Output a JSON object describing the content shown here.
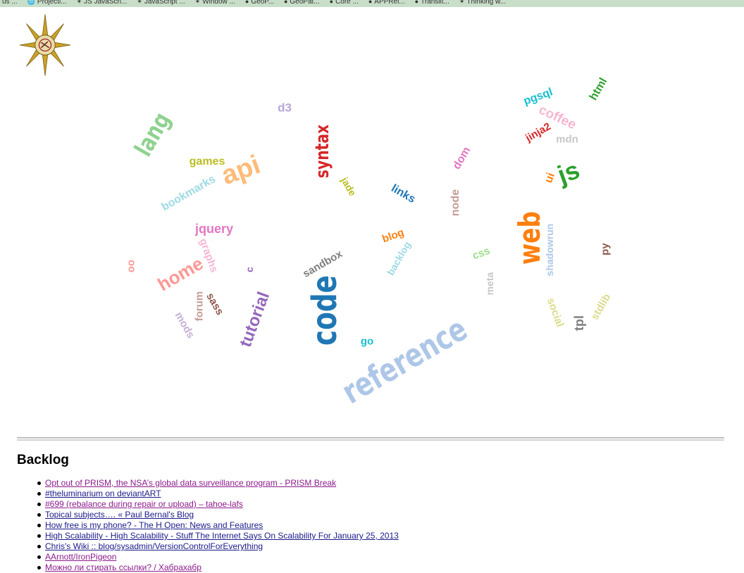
{
  "bookmarks_bar": {
    "items": [
      {
        "icon": "",
        "label": "us ..."
      },
      {
        "icon": "🌐",
        "label": "Projecti..."
      },
      {
        "icon": "✶",
        "label": "JS JavaScri..."
      },
      {
        "icon": "✶",
        "label": "JavaScript ..."
      },
      {
        "icon": "✶",
        "label": "Window ..."
      },
      {
        "icon": "●",
        "label": "GeoP..."
      },
      {
        "icon": "●",
        "label": "GeoPat..."
      },
      {
        "icon": "●",
        "label": "Core ..."
      },
      {
        "icon": "●",
        "label": "APPRei..."
      },
      {
        "icon": "●",
        "label": "Translit..."
      },
      {
        "icon": "✶",
        "label": "Thinking w..."
      }
    ]
  },
  "logo": {
    "alt": "chaos-star-logo"
  },
  "tag_cloud": {
    "tags": [
      {
        "text": "lang",
        "color": "#8fd28f",
        "size": 34,
        "angle": -60,
        "cond": true
      },
      {
        "text": "d3",
        "color": "#b7a6d6",
        "size": 17,
        "angle": 0
      },
      {
        "text": "syntax",
        "color": "#d62728",
        "size": 26,
        "angle": -90,
        "cond": true
      },
      {
        "text": "pgsql",
        "color": "#17becf",
        "size": 16,
        "angle": -20
      },
      {
        "text": "html",
        "color": "#2ca02c",
        "size": 16,
        "angle": -60
      },
      {
        "text": "coffee",
        "color": "#f7b6d2",
        "size": 19,
        "angle": 25
      },
      {
        "text": "jinja2",
        "color": "#d62728",
        "size": 15,
        "angle": -30
      },
      {
        "text": "mdn",
        "color": "#c7c7c7",
        "size": 15,
        "angle": 0
      },
      {
        "text": "js",
        "color": "#2ca02c",
        "size": 36,
        "angle": -20
      },
      {
        "text": "games",
        "color": "#bcbd22",
        "size": 16,
        "angle": 0
      },
      {
        "text": "api",
        "color": "#ffbb78",
        "size": 38,
        "angle": -20
      },
      {
        "text": "bookmarks",
        "color": "#9edae5",
        "size": 16,
        "angle": -30
      },
      {
        "text": "jade",
        "color": "#bcbd22",
        "size": 14,
        "angle": 60
      },
      {
        "text": "links",
        "color": "#1f77b4",
        "size": 16,
        "angle": 30
      },
      {
        "text": "node",
        "color": "#c49c94",
        "size": 16,
        "angle": -90
      },
      {
        "text": "dom",
        "color": "#e377c2",
        "size": 16,
        "angle": -60
      },
      {
        "text": "ui",
        "color": "#ff7f0e",
        "size": 16,
        "angle": -70
      },
      {
        "text": "jquery",
        "color": "#e377c2",
        "size": 18,
        "angle": 0
      },
      {
        "text": "graphs",
        "color": "#f7b6d2",
        "size": 15,
        "angle": 70
      },
      {
        "text": "web",
        "color": "#ff7f0e",
        "size": 42,
        "angle": -90,
        "cond": true
      },
      {
        "text": "shadowrun",
        "color": "#aec7e8",
        "size": 14,
        "angle": -90
      },
      {
        "text": "blog",
        "color": "#ff7f0e",
        "size": 15,
        "angle": -20
      },
      {
        "text": "backlog",
        "color": "#9edae5",
        "size": 14,
        "angle": -60
      },
      {
        "text": "css",
        "color": "#98df8a",
        "size": 15,
        "angle": -20
      },
      {
        "text": "py",
        "color": "#8c564b",
        "size": 15,
        "angle": -90
      },
      {
        "text": "oo",
        "color": "#ff9896",
        "size": 15,
        "angle": 90
      },
      {
        "text": "home",
        "color": "#ff9896",
        "size": 26,
        "angle": -30
      },
      {
        "text": "c",
        "color": "#9467bd",
        "size": 14,
        "angle": -90
      },
      {
        "text": "sandbox",
        "color": "#7f7f7f",
        "size": 15,
        "angle": -30
      },
      {
        "text": "meta",
        "color": "#c7c7c7",
        "size": 14,
        "angle": -90
      },
      {
        "text": "forum",
        "color": "#c49c94",
        "size": 15,
        "angle": -90
      },
      {
        "text": "sass",
        "color": "#8c564b",
        "size": 15,
        "angle": 60
      },
      {
        "text": "tutorial",
        "color": "#9467bd",
        "size": 24,
        "angle": -70
      },
      {
        "text": "code",
        "color": "#1f77b4",
        "size": 48,
        "angle": -90,
        "cond": true
      },
      {
        "text": "mods",
        "color": "#c5b0d5",
        "size": 15,
        "angle": 60
      },
      {
        "text": "go",
        "color": "#17becf",
        "size": 15,
        "angle": 0
      },
      {
        "text": "social",
        "color": "#dbdb8d",
        "size": 15,
        "angle": 70
      },
      {
        "text": "tpl",
        "color": "#7f7f7f",
        "size": 18,
        "angle": -90
      },
      {
        "text": "stdlib",
        "color": "#dbdb8d",
        "size": 15,
        "angle": -60
      },
      {
        "text": "reference",
        "color": "#aec7e8",
        "size": 46,
        "angle": -30,
        "cond": true
      }
    ]
  },
  "backlog": {
    "title": "Backlog",
    "items": [
      {
        "text": "Opt out of PRISM, the NSA’s global data surveillance program - PRISM Break",
        "visited": true
      },
      {
        "text": "#theluminarium on deviantART",
        "visited": false
      },
      {
        "text": "#699 (rebalance during repair or upload) – tahoe-lafs",
        "visited": true
      },
      {
        "text": "Topical subjects…. « Paul Bernal's Blog",
        "visited": false
      },
      {
        "text": "How free is my phone? - The H Open: News and Features",
        "visited": false
      },
      {
        "text": "High Scalability - High Scalability - Stuff The Internet Says On Scalability For January 25, 2013",
        "visited": false
      },
      {
        "text": "Chris's Wiki :: blog/sysadmin/VersionControlForEverything",
        "visited": false
      },
      {
        "text": "AArnott/IronPigeon",
        "visited": true
      },
      {
        "text": "Можно ли стирать ссылки? / Хабрахабр",
        "visited": true
      }
    ]
  }
}
